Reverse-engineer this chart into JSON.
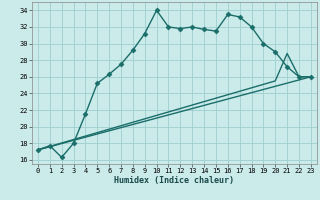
{
  "title": "",
  "xlabel": "Humidex (Indice chaleur)",
  "bg_color": "#cbeaea",
  "grid_color": "#9ecece",
  "line_color": "#1a6e6a",
  "xlim": [
    -0.5,
    23.5
  ],
  "ylim": [
    15.5,
    35.0
  ],
  "xticks": [
    0,
    1,
    2,
    3,
    4,
    5,
    6,
    7,
    8,
    9,
    10,
    11,
    12,
    13,
    14,
    15,
    16,
    17,
    18,
    19,
    20,
    21,
    22,
    23
  ],
  "yticks": [
    16,
    18,
    20,
    22,
    24,
    26,
    28,
    30,
    32,
    34
  ],
  "line1_x": [
    0,
    1,
    2,
    3,
    4,
    5,
    6,
    7,
    8,
    9,
    10,
    11,
    12,
    13,
    14,
    15,
    16,
    17,
    18,
    19,
    20,
    21,
    22,
    23
  ],
  "line1_y": [
    17.2,
    17.7,
    16.3,
    18.0,
    21.5,
    25.2,
    26.3,
    27.5,
    29.2,
    31.2,
    34.0,
    32.0,
    31.8,
    32.0,
    31.7,
    31.5,
    33.5,
    33.2,
    32.0,
    30.0,
    29.0,
    27.2,
    26.0,
    26.0
  ],
  "line2_x": [
    0,
    23
  ],
  "line2_y": [
    17.2,
    26.0
  ],
  "line3_x": [
    0,
    20,
    21,
    22,
    23
  ],
  "line3_y": [
    17.2,
    25.5,
    28.8,
    26.0,
    26.0
  ],
  "marker": "D",
  "markersize": 2.5,
  "linewidth": 1.0,
  "tick_fontsize": 5.0,
  "xlabel_fontsize": 6.0
}
